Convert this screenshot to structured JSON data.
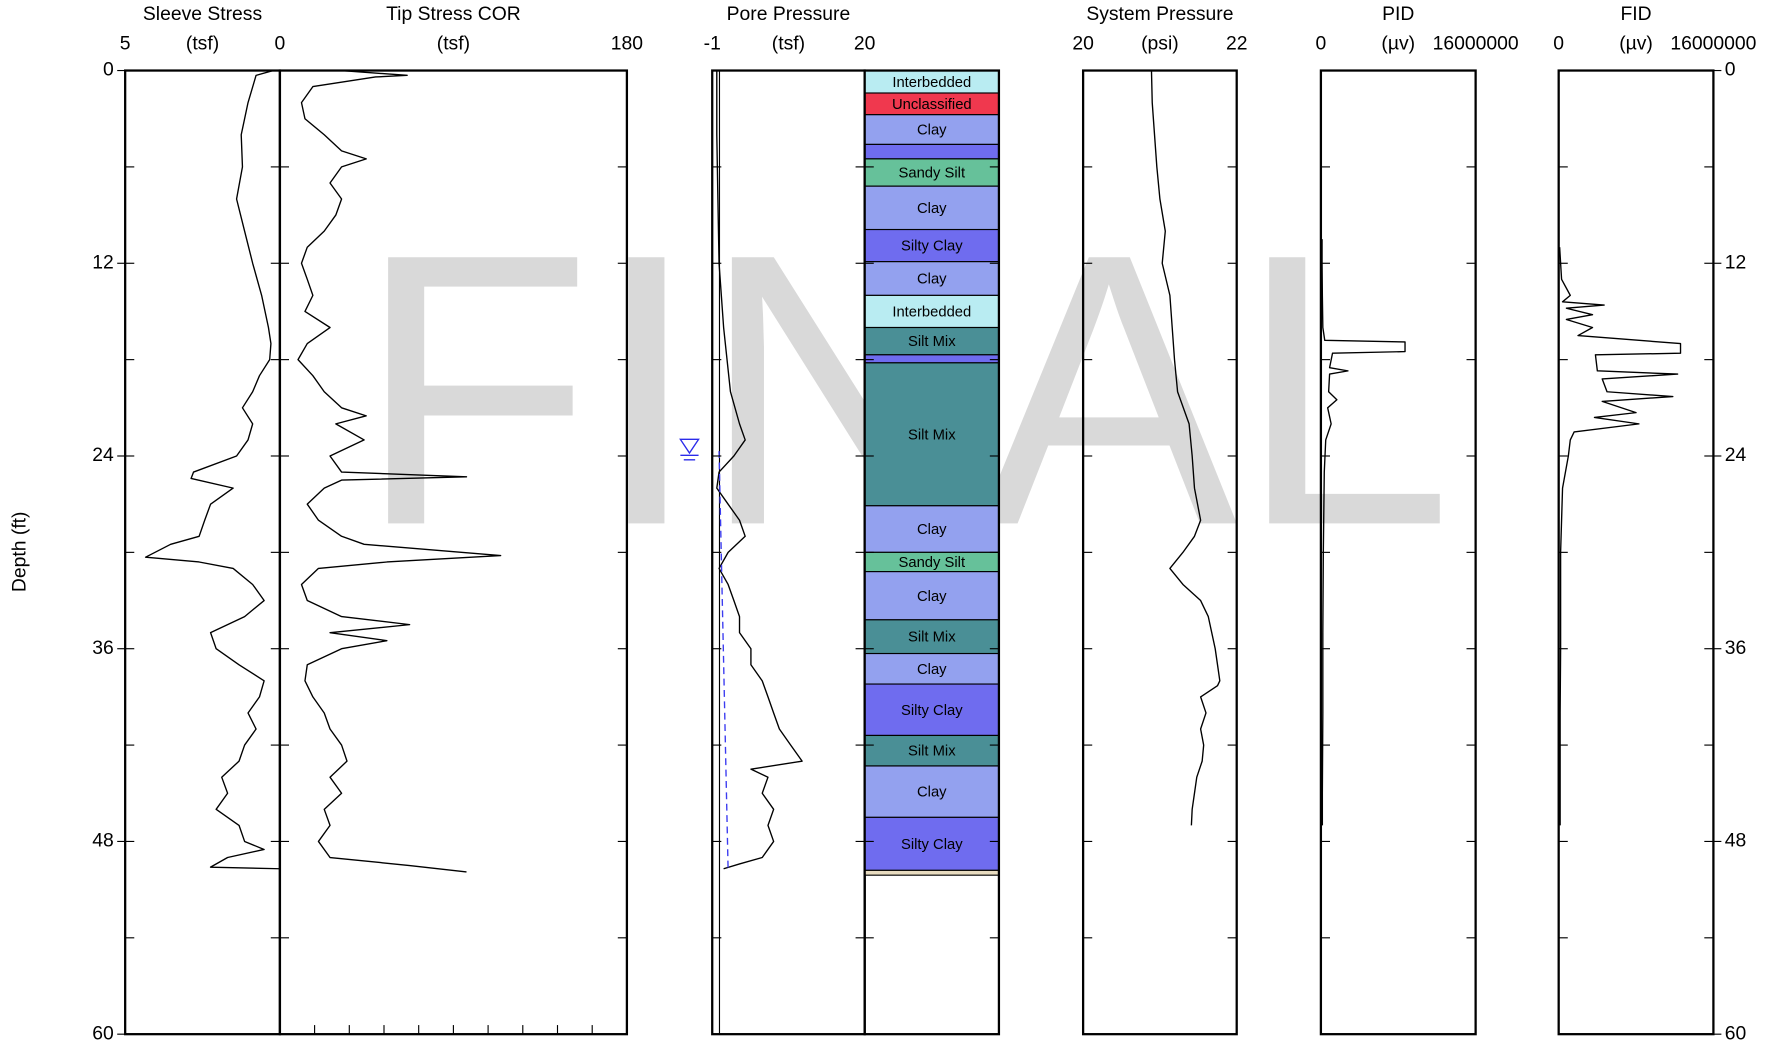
{
  "chart_data": {
    "type": "depth-log",
    "watermark": "FINAL",
    "ylabel": "Depth (ft)",
    "ylim": [
      0,
      60
    ],
    "yticks": [
      0,
      12,
      24,
      36,
      48,
      60
    ],
    "yminorticks": [
      6,
      18,
      30,
      42,
      54
    ],
    "tracks": [
      {
        "type": "line",
        "title": "Sleeve Stress",
        "unit": "(tsf)",
        "xlim": [
          5,
          0
        ],
        "xticks": [
          5,
          0
        ],
        "series": [
          {
            "color": "#000000",
            "depth": [
              0,
              0.3,
              2,
              4,
              6,
              8,
              10,
              12,
              14,
              16,
              17,
              18,
              19,
              20,
              21,
              22,
              23,
              24,
              25,
              25.4,
              26,
              27,
              28,
              29,
              29.5,
              30.3,
              30.6,
              31,
              32,
              33,
              34,
              35,
              36,
              37,
              38,
              39,
              40,
              41,
              42,
              43,
              44,
              45,
              46,
              47,
              48,
              48.5,
              49,
              49.6,
              49.7
            ],
            "values": [
              0.22,
              0.77,
              1.03,
              1.25,
              1.21,
              1.4,
              1.14,
              0.88,
              0.59,
              0.37,
              0.29,
              0.33,
              0.66,
              0.88,
              1.21,
              0.88,
              1.03,
              1.4,
              2.79,
              2.87,
              1.51,
              2.24,
              2.43,
              2.61,
              3.53,
              4.34,
              2.61,
              1.51,
              0.88,
              0.51,
              1.14,
              2.24,
              2.06,
              1.32,
              0.51,
              0.66,
              1.03,
              0.77,
              1.14,
              1.32,
              1.88,
              1.69,
              2.06,
              1.32,
              1.14,
              0.51,
              1.69,
              2.24,
              0
            ]
          }
        ]
      },
      {
        "type": "line",
        "title": "Tip Stress COR",
        "unit": "(tsf)",
        "xlim": [
          0,
          180
        ],
        "xticks": [
          180
        ],
        "xminorticks": [
          18,
          36,
          54,
          72,
          90,
          108,
          126,
          144,
          162
        ],
        "series": [
          {
            "color": "#000000",
            "depth": [
              0,
              0.3,
              0.4,
              1,
              2,
              3,
              4,
              5,
              5.5,
              6,
              7,
              8,
              9,
              10,
              11,
              12,
              13,
              14,
              15,
              16,
              17,
              18,
              19,
              20,
              21,
              21.5,
              22,
              23,
              24,
              25,
              25.3,
              25.5,
              26,
              27,
              28,
              29,
              29.5,
              30.2,
              30.6,
              31,
              32,
              33,
              34,
              34.5,
              35,
              35.5,
              36,
              37,
              38,
              39,
              40,
              41,
              42,
              43,
              44,
              45,
              46,
              47,
              48,
              49,
              49.5,
              49.9
            ],
            "values": [
              31.9,
              66,
              49.6,
              17.1,
              11.2,
              13,
              23,
              32,
              44.8,
              32,
              26,
              32,
              29,
              23,
              14.2,
              11.2,
              14.2,
              17.1,
              13,
              26,
              14.2,
              9.4,
              17.1,
              23,
              32,
              44.8,
              29,
              43.7,
              26,
              32,
              96.8,
              32,
              23,
              14.2,
              20,
              32,
              43.7,
              114.5,
              55.5,
              20,
              11.2,
              14.2,
              32,
              67.3,
              26,
              55.5,
              32,
              14.2,
              13,
              17.1,
              23,
              26,
              32,
              34.8,
              26,
              32,
              23,
              26,
              20,
              26,
              67.3,
              96.8
            ]
          }
        ]
      },
      {
        "type": "line",
        "title": "Pore Pressure",
        "unit": "(tsf)",
        "xlim": [
          -1,
          20
        ],
        "xticks": [
          -1,
          20
        ],
        "reference_line": 0,
        "water_table": 23.6,
        "series": [
          {
            "color": "#000000",
            "depth": [
              0,
              4,
              8,
              12,
              16,
              20,
              22,
              23,
              24,
              25,
              26,
              27,
              28,
              29,
              30,
              31,
              32,
              33,
              34,
              35,
              36,
              37,
              38,
              39,
              40,
              41,
              42,
              43,
              43.5,
              44,
              45,
              46,
              47,
              48,
              49,
              49.4,
              49.7
            ],
            "values": [
              -0.37,
              -0.37,
              -0.22,
              -0.06,
              0.57,
              1.51,
              2.76,
              3.54,
              1.98,
              -0.06,
              -0.37,
              1.19,
              2.76,
              3.54,
              1.19,
              -0.06,
              1.19,
              1.98,
              2.76,
              2.76,
              4.33,
              4.33,
              5.89,
              6.68,
              7.46,
              8.25,
              9.81,
              11.38,
              4.33,
              6.68,
              5.89,
              7.46,
              6.68,
              7.46,
              5.89,
              2.76,
              0.57
            ]
          },
          {
            "color": "#3b3bf0",
            "dash": true,
            "depth": [
              23.7,
              49.8
            ],
            "values": [
              -0.06,
              1.19
            ]
          }
        ]
      },
      {
        "type": "lithology",
        "layers": [
          {
            "label": "Interbedded",
            "top": 0,
            "bottom": 1.4,
            "color": "#b9ecf2"
          },
          {
            "label": "Unclassified",
            "top": 1.4,
            "bottom": 2.75,
            "color": "#f0384e"
          },
          {
            "label": "Clay",
            "top": 2.75,
            "bottom": 4.6,
            "color": "#93a1ef"
          },
          {
            "top": 4.6,
            "bottom": 5.5,
            "color": "#6f6cef"
          },
          {
            "label": "Sandy Silt",
            "top": 5.5,
            "bottom": 7.2,
            "color": "#66c19a"
          },
          {
            "label": "Clay",
            "top": 7.2,
            "bottom": 9.9,
            "color": "#93a1ef"
          },
          {
            "label": "Silty Clay",
            "top": 9.9,
            "bottom": 11.9,
            "color": "#6f6cef"
          },
          {
            "label": "Clay",
            "top": 11.9,
            "bottom": 14.0,
            "color": "#93a1ef"
          },
          {
            "label": "Interbedded",
            "top": 14.0,
            "bottom": 16.0,
            "color": "#b9ecf2"
          },
          {
            "label": "Silt Mix",
            "top": 16.0,
            "bottom": 17.7,
            "color": "#4a8f96"
          },
          {
            "top": 17.7,
            "bottom": 18.2,
            "color": "#6f6cef"
          },
          {
            "label": "Silt Mix",
            "top": 18.2,
            "bottom": 27.1,
            "color": "#4a8f96"
          },
          {
            "label": "Clay",
            "top": 27.1,
            "bottom": 30.0,
            "color": "#93a1ef"
          },
          {
            "label": "Sandy Silt",
            "top": 30.0,
            "bottom": 31.2,
            "color": "#66c19a"
          },
          {
            "label": "Clay",
            "top": 31.2,
            "bottom": 34.2,
            "color": "#93a1ef"
          },
          {
            "label": "Silt Mix",
            "top": 34.2,
            "bottom": 36.3,
            "color": "#4a8f96"
          },
          {
            "label": "Clay",
            "top": 36.3,
            "bottom": 38.2,
            "color": "#93a1ef"
          },
          {
            "label": "Silty Clay",
            "top": 38.2,
            "bottom": 41.4,
            "color": "#6f6cef"
          },
          {
            "label": "Silt Mix",
            "top": 41.4,
            "bottom": 43.3,
            "color": "#4a8f96"
          },
          {
            "label": "Clay",
            "top": 43.3,
            "bottom": 46.5,
            "color": "#93a1ef"
          },
          {
            "label": "Silty Clay",
            "top": 46.5,
            "bottom": 49.8,
            "color": "#6f6cef"
          },
          {
            "top": 49.8,
            "bottom": 50.1,
            "color": "#e8dcc0"
          }
        ]
      },
      {
        "type": "line",
        "title": "System Pressure",
        "unit": "(psi)",
        "xlim": [
          20,
          22
        ],
        "xticks": [
          20,
          22
        ],
        "series": [
          {
            "color": "#000000",
            "depth": [
              0,
              2,
              4,
              6,
              8,
              10,
              12,
              14,
              16,
              18,
              20,
              22,
              24,
              26,
              28,
              29,
              30,
              31,
              32,
              33,
              34,
              36,
              37,
              38,
              38.3,
              39,
              40,
              41,
              42,
              43,
              44,
              45,
              46,
              47
            ],
            "values": [
              20.89,
              20.9,
              20.93,
              20.96,
              21,
              21.07,
              21.03,
              21.13,
              21.16,
              21.19,
              21.23,
              21.38,
              21.42,
              21.45,
              21.53,
              21.45,
              21.3,
              21.13,
              21.3,
              21.53,
              21.63,
              21.72,
              21.75,
              21.78,
              21.75,
              21.53,
              21.6,
              21.53,
              21.57,
              21.55,
              21.48,
              21.45,
              21.42,
              21.41
            ]
          }
        ]
      },
      {
        "type": "line",
        "title": "PID",
        "unit": "(µv)",
        "xlim": [
          0,
          16000000
        ],
        "xticks": [
          0,
          16000000
        ],
        "series": [
          {
            "color": "#000000",
            "depth": [
              10.5,
              12,
              14,
              16,
              16.8,
              16.9,
              17.5,
              17.6,
              18.5,
              18.7,
              18.9,
              20,
              20.5,
              21,
              22,
              23,
              25,
              30,
              35,
              40,
              45,
              47
            ],
            "values": [
              120000,
              120000,
              150000,
              200000,
              400000,
              8700000,
              8700000,
              1200000,
              900000,
              2800000,
              900000,
              800000,
              1650000,
              700000,
              1060000,
              500000,
              350000,
              250000,
              200000,
              200000,
              150000,
              150000
            ]
          }
        ]
      },
      {
        "type": "line",
        "title": "FID",
        "unit": "(µv)",
        "xlim": [
          0,
          16000000
        ],
        "xticks": [
          0,
          16000000
        ],
        "series": [
          {
            "color": "#000000",
            "depth": [
              11,
              13,
              14,
              14.4,
              14.6,
              14.8,
              15.2,
              15.5,
              16,
              16.5,
              17,
              17.6,
              17.7,
              18.7,
              18.9,
              19.2,
              20,
              20.3,
              20.6,
              21.3,
              21.6,
              22,
              22.5,
              23,
              24,
              26,
              30,
              36,
              40,
              47
            ],
            "values": [
              100000,
              300000,
              1200000,
              400000,
              4700000,
              800000,
              3500000,
              800000,
              3500000,
              2000000,
              12600000,
              12600000,
              3800000,
              4000000,
              12300000,
              4500000,
              5000000,
              11800000,
              4500000,
              8000000,
              3700000,
              8300000,
              1600000,
              1200000,
              1000000,
              400000,
              200000,
              200000,
              150000,
              150000
            ]
          }
        ]
      }
    ]
  }
}
